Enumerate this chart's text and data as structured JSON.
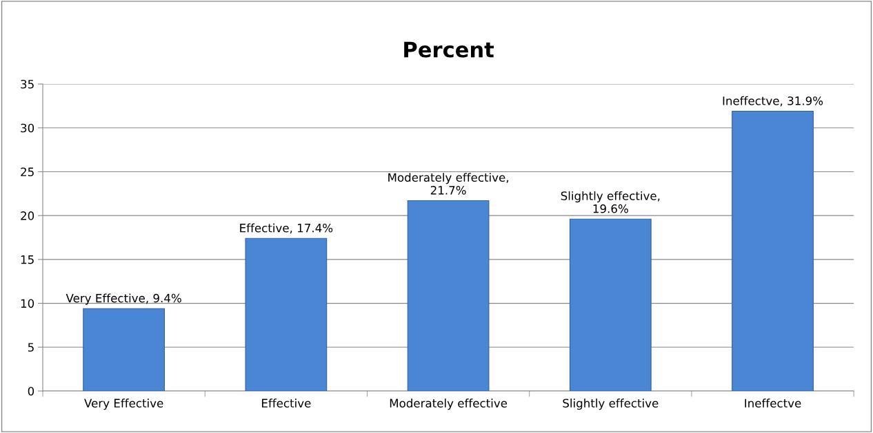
{
  "chart_data": {
    "type": "bar",
    "title": "Percent",
    "categories": [
      "Very Effective",
      "Effective",
      "Moderately effective",
      "Slightly effective",
      "Ineffectve"
    ],
    "values": [
      9.4,
      17.4,
      21.7,
      19.6,
      31.9
    ],
    "value_labels": [
      "Very Effective, 9.4%",
      "Effective, 17.4%",
      "Moderately effective,\n21.7%",
      "Slightly effective,\n19.6%",
      "Ineffectve, 31.9%"
    ],
    "color": "#4a86d4",
    "ylim": [
      0,
      35
    ],
    "yticks": [
      0,
      5,
      10,
      15,
      20,
      25,
      30,
      35
    ],
    "grid": "y"
  }
}
